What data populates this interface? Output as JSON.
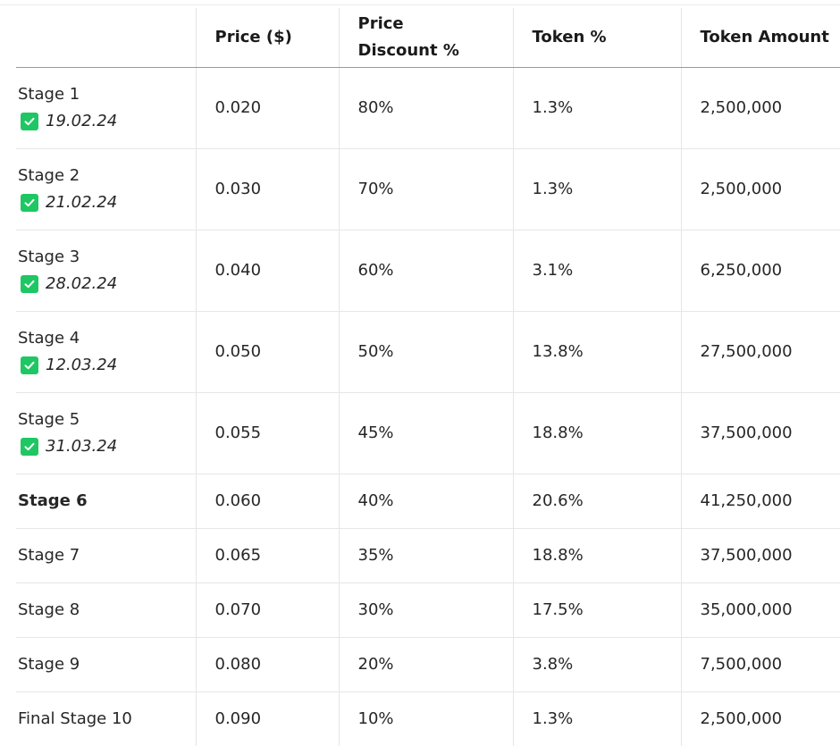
{
  "table": {
    "headers": [
      "",
      "Price ($)",
      "Price\nDiscount %",
      "Token %",
      "Token Amount"
    ],
    "header_lines": {
      "price": "Price ($)",
      "discount_line1": "Price",
      "discount_line2": "Discount %",
      "token_pct": "Token %",
      "token_amount": "Token Amount"
    },
    "rows": [
      {
        "stage": "Stage 1",
        "date": "19.02.24",
        "price": "0.020",
        "discount": "80%",
        "token_pct": "1.3%",
        "token_amount": "2,500,000"
      },
      {
        "stage": "Stage 2",
        "date": "21.02.24",
        "price": "0.030",
        "discount": "70%",
        "token_pct": "1.3%",
        "token_amount": "2,500,000"
      },
      {
        "stage": "Stage 3",
        "date": "28.02.24",
        "price": "0.040",
        "discount": "60%",
        "token_pct": "3.1%",
        "token_amount": "6,250,000"
      },
      {
        "stage": "Stage 4",
        "date": "12.03.24",
        "price": "0.050",
        "discount": "50%",
        "token_pct": "13.8%",
        "token_amount": "27,500,000"
      },
      {
        "stage": "Stage 5",
        "date": "31.03.24",
        "price": "0.055",
        "discount": "45%",
        "token_pct": "18.8%",
        "token_amount": "37,500,000"
      },
      {
        "stage": "Stage 6",
        "price": "0.060",
        "discount": "40%",
        "token_pct": "20.6%",
        "token_amount": "41,250,000"
      },
      {
        "stage": "Stage 7",
        "price": "0.065",
        "discount": "35%",
        "token_pct": "18.8%",
        "token_amount": "37,500,000"
      },
      {
        "stage": "Stage 8",
        "price": "0.070",
        "discount": "30%",
        "token_pct": "17.5%",
        "token_amount": "35,000,000"
      },
      {
        "stage": "Stage 9",
        "price": "0.080",
        "discount": "20%",
        "token_pct": "3.8%",
        "token_amount": "7,500,000"
      },
      {
        "stage": "Final Stage 10",
        "price": "0.090",
        "discount": "10%",
        "token_pct": "1.3%",
        "token_amount": "2,500,000"
      }
    ]
  },
  "colors": {
    "check_green": "#1fc764",
    "header_border": "#9a9a9a",
    "row_border": "#e6e6e6"
  },
  "icons": {
    "completed": "checkbox-checked-icon"
  }
}
